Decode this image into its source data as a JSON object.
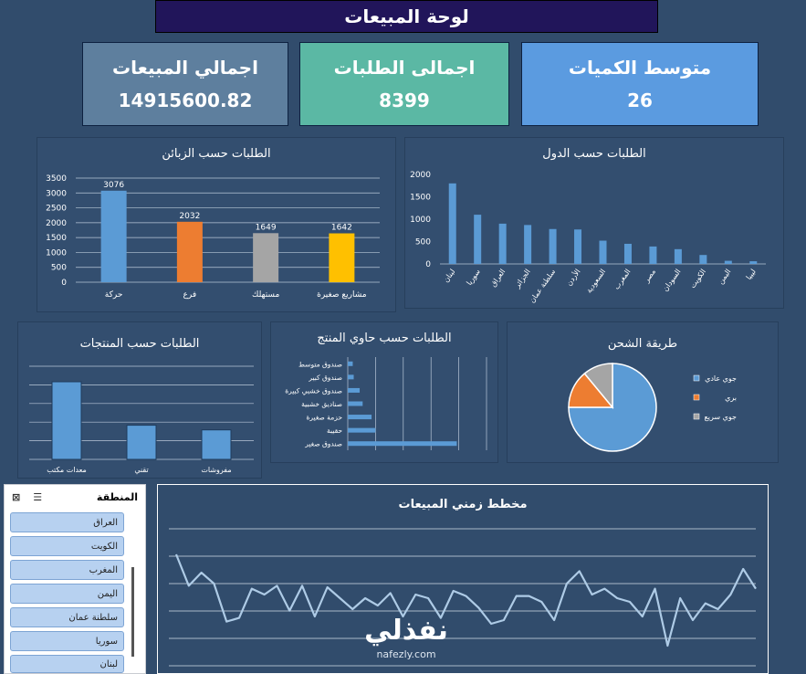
{
  "header": {
    "title": "لوحة المبيعات"
  },
  "kpis": [
    {
      "label": "اجمالي المبيعات",
      "value": "14915600.82",
      "color": "#5e7f9e"
    },
    {
      "label": "اجمالى الطلبات",
      "value": "8399",
      "color": "#5bb8a4"
    },
    {
      "label": "متوسط الكميات",
      "value": "26",
      "color": "#5b9be0"
    }
  ],
  "slicer": {
    "title": "المنطقة",
    "items": [
      "العراق",
      "الكويت",
      "المغرب",
      "اليمن",
      "سلطنة عمان",
      "سوريا",
      "لبنان"
    ]
  },
  "watermark": {
    "brand": "نفذلي",
    "url": "nafezly.com"
  },
  "chart_data": [
    {
      "id": "customers",
      "type": "bar",
      "title": "الطلبات حسب الزبائن",
      "categories": [
        "حركة",
        "فرع",
        "مستهلك",
        "مشاريع صغيرة"
      ],
      "values": [
        3076,
        2032,
        1649,
        1642
      ],
      "colors": [
        "#5b9bd5",
        "#ed7d31",
        "#a5a5a5",
        "#ffc000"
      ],
      "yticks": [
        0,
        500,
        1000,
        1500,
        2000,
        2500,
        3000,
        3500
      ],
      "ylim": [
        0,
        3500
      ],
      "grid": true
    },
    {
      "id": "countries",
      "type": "bar",
      "title": "الطلبات حسب الدول",
      "categories": [
        "لبنان",
        "سوريا",
        "العراق",
        "الجزائر",
        "سلطنة عمان",
        "الأردن",
        "السعودية",
        "المغرب",
        "مصر",
        "السودان",
        "الكويت",
        "اليمن",
        "ليبيا"
      ],
      "values": [
        1800,
        1100,
        900,
        870,
        780,
        770,
        520,
        450,
        390,
        330,
        200,
        70,
        60
      ],
      "colors": [
        "#5b9bd5"
      ],
      "yticks": [
        0,
        500,
        1000,
        1500,
        2000
      ],
      "ylim": [
        0,
        2000
      ],
      "grid": false
    },
    {
      "id": "products",
      "type": "bar",
      "title": "الطلبات حسب المنتجات",
      "categories": [
        "معدات مكتب",
        "تقني",
        "مفروشات"
      ],
      "values": [
        5000,
        2200,
        1900
      ],
      "colors": [
        "#5b9bd5"
      ],
      "ylim": [
        0,
        6000
      ],
      "grid": true
    },
    {
      "id": "containers",
      "type": "bar-horizontal",
      "title": "الطلبات حسب حاوي المنتج",
      "categories": [
        "صندوق متوسط",
        "صندوق كبير",
        "صندوق خشبي كبيرة",
        "صناديق خشبية",
        "حزمة صغيرة",
        "حقيبة",
        "صندوق صغير"
      ],
      "values": [
        5,
        6,
        12,
        15,
        24,
        28,
        110
      ],
      "colors": [
        "#5b9bd5"
      ],
      "xlim": [
        0,
        140
      ],
      "grid": true
    },
    {
      "id": "shipping",
      "type": "pie",
      "title": "طريقة الشحن",
      "categories": [
        "جوي عادي",
        "بري",
        "جوي سريع"
      ],
      "values": [
        75,
        14,
        11
      ],
      "colors": [
        "#5b9bd5",
        "#ed7d31",
        "#a5a5a5"
      ],
      "legend": "right"
    },
    {
      "id": "timeline",
      "type": "line",
      "title": "مخطط زمني المبيعات",
      "values": [
        95,
        52,
        70,
        55,
        3,
        8,
        48,
        40,
        52,
        18,
        52,
        10,
        50,
        35,
        20,
        35,
        25,
        42,
        10,
        40,
        35,
        8,
        45,
        38,
        22,
        0,
        5,
        38,
        38,
        30,
        5,
        55,
        72,
        40,
        48,
        35,
        30,
        10,
        48,
        -30,
        35,
        5,
        28,
        20,
        40,
        75,
        48
      ],
      "ylim": [
        -60,
        130
      ],
      "colors": [
        "#aecbe6"
      ],
      "grid": true
    }
  ]
}
